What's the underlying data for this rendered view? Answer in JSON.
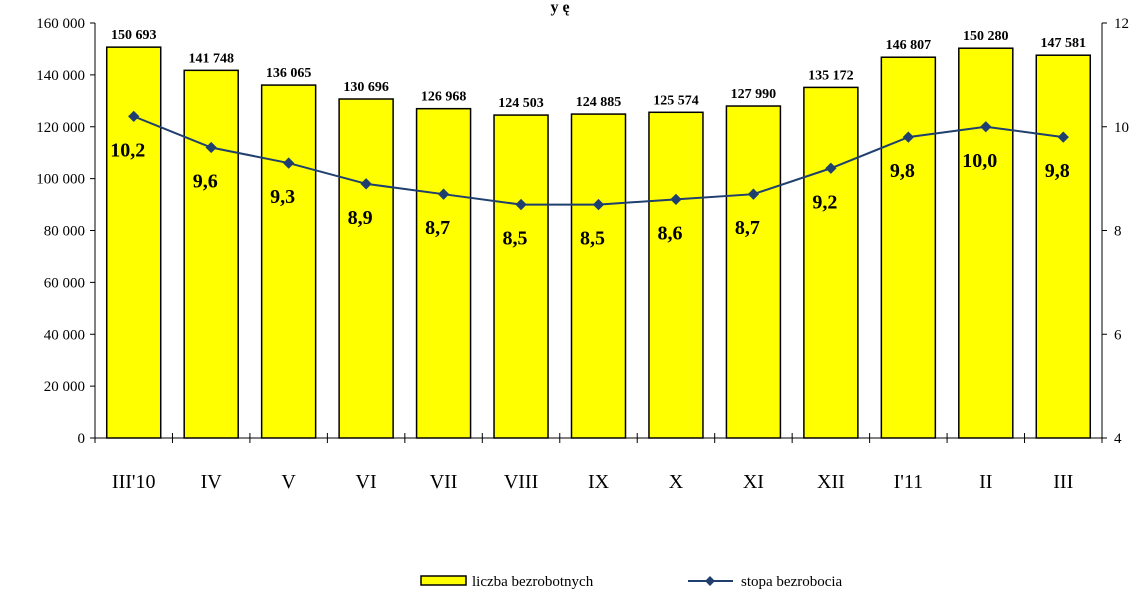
{
  "chart_data": {
    "type": "bar",
    "title_fragment": "y   ę",
    "categories": [
      "III'10",
      "IV",
      "V",
      "VI",
      "VII",
      "VIII",
      "IX",
      "X",
      "XI",
      "XII",
      "I'11",
      "II",
      "III"
    ],
    "series": [
      {
        "name": "liczba bezrobotnych",
        "type": "bar",
        "axis": "left",
        "color": "#ffff00",
        "values": [
          150693,
          141748,
          136065,
          130696,
          126968,
          124503,
          124885,
          125574,
          127990,
          135172,
          146807,
          150280,
          147581
        ],
        "labels": [
          "150 693",
          "141 748",
          "136 065",
          "130 696",
          "126 968",
          "124 503",
          "124 885",
          "125 574",
          "127 990",
          "135 172",
          "146 807",
          "150 280",
          "147 581"
        ]
      },
      {
        "name": "stopa bezrobocia",
        "type": "line",
        "axis": "right",
        "color": "#1f3f6f",
        "values": [
          10.2,
          9.6,
          9.3,
          8.9,
          8.7,
          8.5,
          8.5,
          8.6,
          8.7,
          9.2,
          9.8,
          10.0,
          9.8
        ],
        "labels": [
          "10,2",
          "9,6",
          "9,3",
          "8,9",
          "8,7",
          "8,5",
          "8,5",
          "8,6",
          "8,7",
          "9,2",
          "9,8",
          "10,0",
          "9,8"
        ]
      }
    ],
    "y_left": {
      "min": 0,
      "max": 160000,
      "step": 20000,
      "tick_labels": [
        "0",
        "20 000",
        "40 000",
        "60 000",
        "80 000",
        "100 000",
        "120 000",
        "140 000",
        "160 000"
      ]
    },
    "y_right": {
      "min": 4,
      "max": 12,
      "step": 2,
      "tick_labels": [
        "4",
        "6",
        "8",
        "10",
        "12"
      ]
    },
    "grid": false,
    "legend_position": "bottom"
  }
}
